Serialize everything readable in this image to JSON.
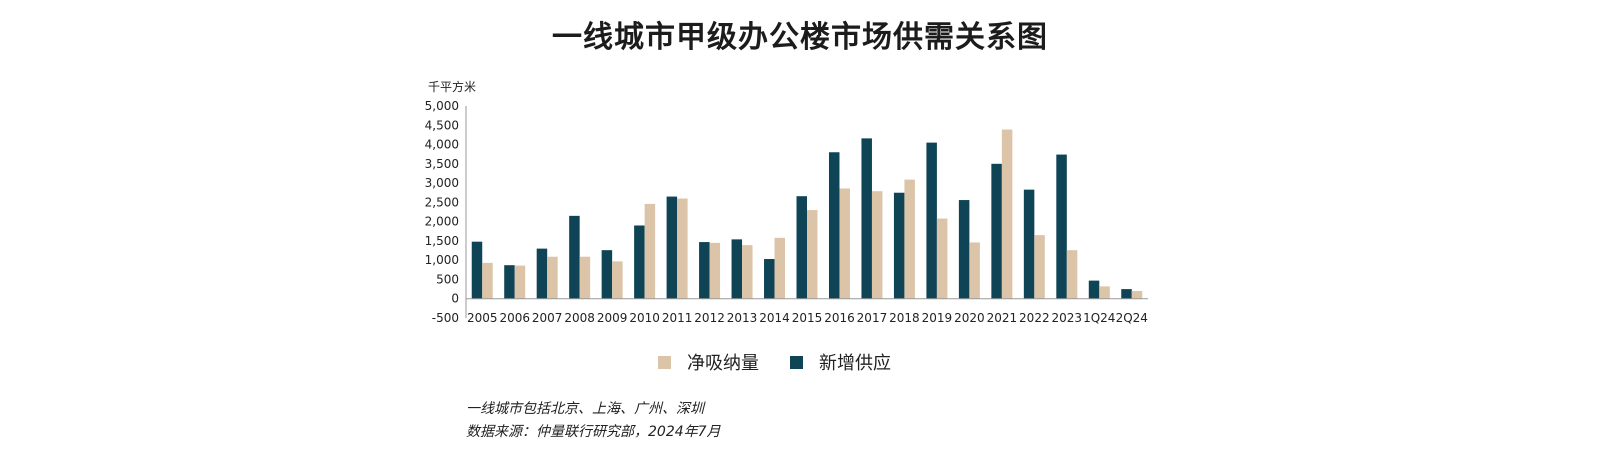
{
  "chart_data": {
    "type": "bar",
    "title": "一线城市甲级办公楼市场供需关系图",
    "ylabel": "千平方米",
    "ylim": [
      -500,
      5000
    ],
    "yticks": [
      "-500",
      "0",
      "500",
      "1,000",
      "1,500",
      "2,000",
      "2,500",
      "3,000",
      "3,500",
      "4,000",
      "4,500",
      "5,000"
    ],
    "categories": [
      "2005",
      "2006",
      "2007",
      "2008",
      "2009",
      "2010",
      "2011",
      "2012",
      "2013",
      "2014",
      "2015",
      "2016",
      "2017",
      "2018",
      "2019",
      "2020",
      "2021",
      "2022",
      "2023",
      "1Q24",
      "2Q24"
    ],
    "series": [
      {
        "name": "新增供应",
        "color": "#0f4456",
        "values": [
          1480,
          870,
          1300,
          2150,
          1260,
          1900,
          2650,
          1470,
          1540,
          1030,
          2660,
          3800,
          4160,
          2750,
          4050,
          2560,
          3500,
          2830,
          3740,
          470,
          250
        ]
      },
      {
        "name": "净吸纳量",
        "color": "#dcc4a8",
        "values": [
          930,
          860,
          1090,
          1090,
          970,
          2460,
          2600,
          1450,
          1390,
          1580,
          2300,
          2860,
          2790,
          3090,
          2080,
          1460,
          4390,
          1650,
          1260,
          320,
          200
        ]
      }
    ],
    "legend": [
      {
        "name": "净吸纳量",
        "color": "#dcc4a8"
      },
      {
        "name": "新增供应",
        "color": "#0f4456"
      }
    ],
    "legend_position": "bottom",
    "grid": false
  },
  "notes": {
    "line1": "一线城市包括北京、上海、广州、深圳",
    "line2": "数据来源：仲量联行研究部，2024年7月"
  }
}
